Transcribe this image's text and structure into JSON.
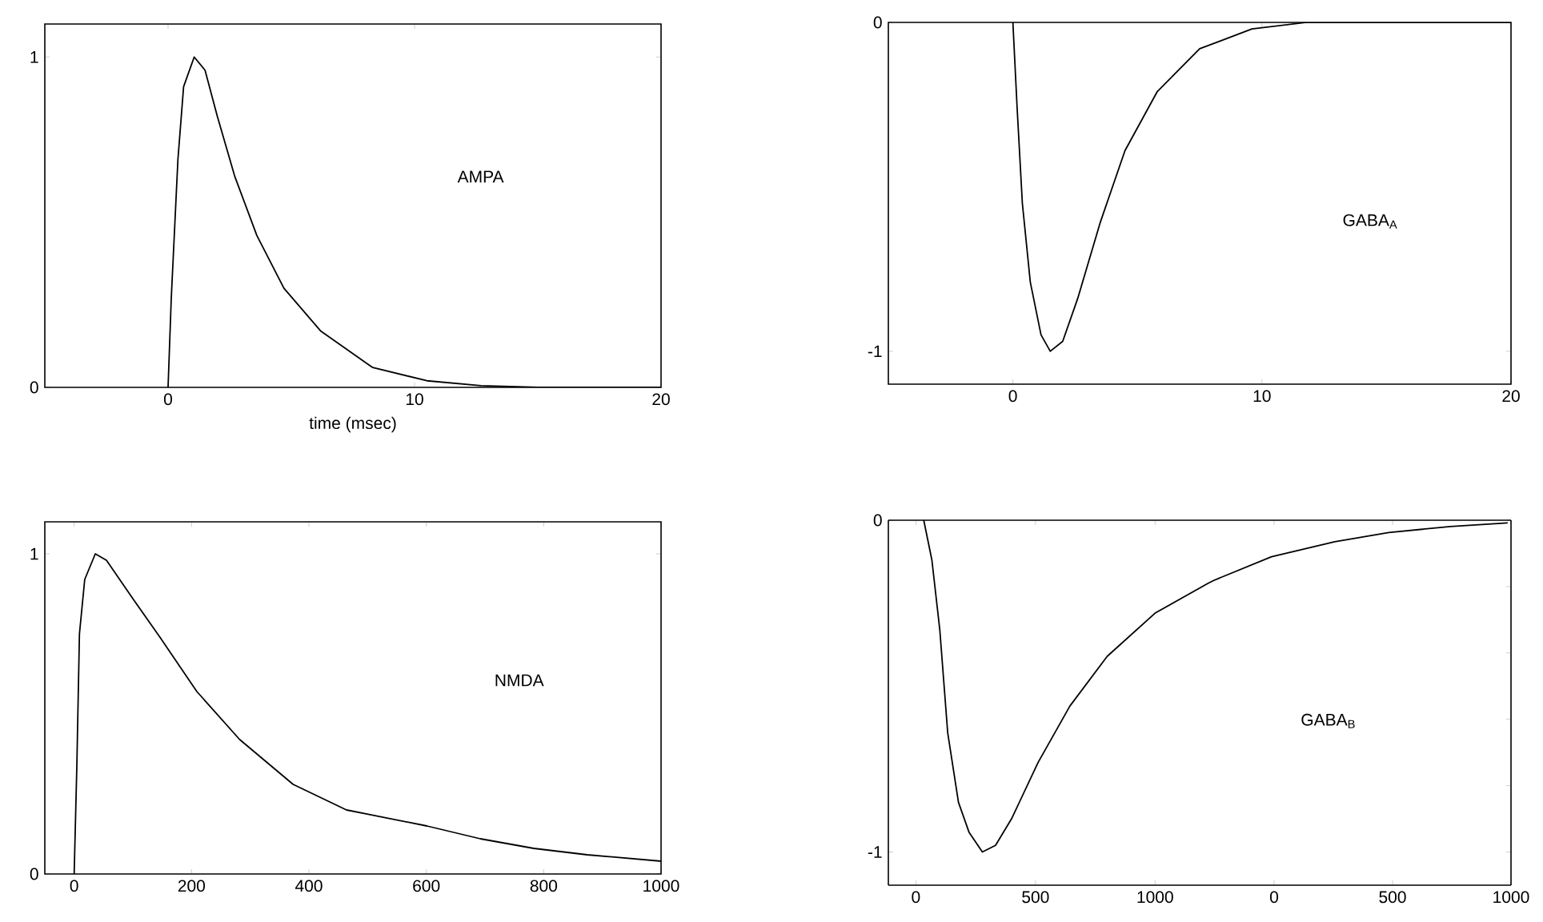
{
  "chart_data": [
    {
      "type": "line",
      "xlabel": "time (msec)",
      "annotations": [
        "AMPA"
      ],
      "xlim": [
        -5,
        20
      ],
      "ylim": [
        0,
        1.1
      ],
      "xticks": [
        0,
        10,
        20
      ],
      "yticks": [
        0,
        1
      ],
      "color": "#000000",
      "x": [
        0,
        0.13,
        0.4,
        0.63,
        1.06,
        1.5,
        2.0,
        2.7,
        3.6,
        4.7,
        6.2,
        8.3,
        10.5,
        12.7,
        15,
        20
      ],
      "values": [
        0,
        0.27,
        0.69,
        0.91,
        1.0,
        0.96,
        0.82,
        0.64,
        0.46,
        0.3,
        0.17,
        0.06,
        0.02,
        0.005,
        0,
        0
      ]
    },
    {
      "type": "line",
      "annotations": [
        "GABA$_{A}$"
      ],
      "xlim": [
        -5,
        20
      ],
      "ylim": [
        -1.1,
        0
      ],
      "xticks": [
        0,
        10,
        20
      ],
      "yticks": [
        -1,
        0
      ],
      "color": "#000000",
      "x": [
        0,
        0.17,
        0.38,
        0.7,
        1.13,
        1.5,
        2.0,
        2.6,
        3.5,
        4.5,
        5.8,
        7.5,
        9.6,
        11.8,
        13.9,
        20
      ],
      "values": [
        0,
        -0.26,
        -0.55,
        -0.79,
        -0.95,
        -1.0,
        -0.97,
        -0.84,
        -0.61,
        -0.39,
        -0.21,
        -0.08,
        -0.02,
        0,
        0,
        0
      ]
    },
    {
      "type": "line",
      "annotations": [
        "NMDA"
      ],
      "xlim": [
        -50,
        1000
      ],
      "ylim": [
        0,
        1.1
      ],
      "xticks": [
        0,
        200,
        400,
        600,
        800,
        1000
      ],
      "yticks": [
        0,
        1
      ],
      "color": "#000000",
      "x": [
        0,
        4.6,
        9,
        18,
        36,
        55,
        100,
        146,
        209,
        282,
        373,
        464,
        601,
        692,
        783,
        874,
        1000
      ],
      "values": [
        0,
        0.34,
        0.75,
        0.92,
        1.0,
        0.98,
        0.86,
        0.74,
        0.57,
        0.42,
        0.28,
        0.2,
        0.15,
        0.11,
        0.08,
        0.06,
        0.04
      ]
    },
    {
      "type": "line",
      "xlim": [
        -115,
        1250
      ],
      "ylim": [
        -1.1,
        0
      ],
      "xticks": [
        0,
        500,
        1000
      ],
      "yticks": [
        -1,
        0
      ],
      "color": "#000000",
      "x": [
        33,
        67,
        100,
        133,
        178,
        222,
        278,
        333,
        400,
        511,
        644,
        800,
        1000,
        1222,
        1250
      ],
      "values": [
        0,
        -0.12,
        -0.33,
        -0.64,
        -0.85,
        -0.94,
        -1.0,
        -0.98,
        -0.9,
        -0.73,
        -0.56,
        -0.41,
        -0.28,
        -0.19,
        -0.18
      ]
    },
    {
      "type": "line",
      "annotations": [
        "GABA$_{B}$"
      ],
      "xlim": [
        -250,
        1000
      ],
      "ylim": [
        -1.1,
        0
      ],
      "xticks": [
        0,
        500,
        1000
      ],
      "tick_labels": "x",
      "color": "#000000",
      "x": [
        -250,
        -11,
        256,
        484,
        744,
        984
      ],
      "values": [
        -0.18,
        -0.11,
        -0.065,
        -0.037,
        -0.019,
        -0.008
      ]
    }
  ]
}
